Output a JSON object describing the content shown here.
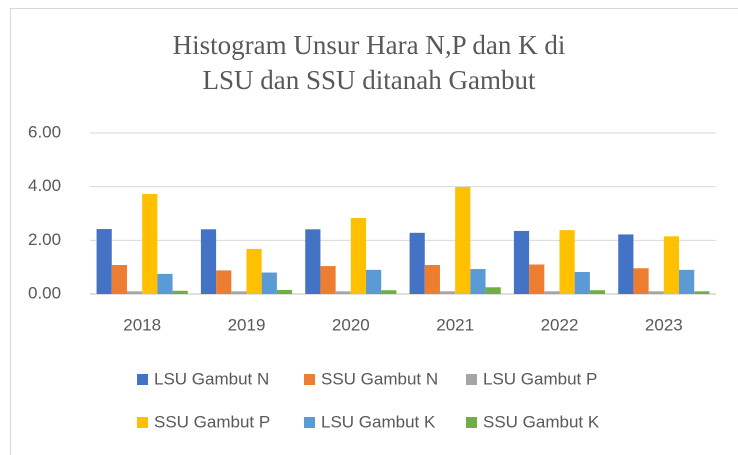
{
  "chart_data": {
    "type": "bar",
    "title": "Histogram Unsur Hara N,P dan K di LSU dan SSU ditanah Gambut",
    "categories": [
      "2018",
      "2019",
      "2020",
      "2021",
      "2022",
      "2023"
    ],
    "series": [
      {
        "name": "LSU Gambut N",
        "color": "#4472c4",
        "values": [
          2.42,
          2.41,
          2.41,
          2.28,
          2.35,
          2.22
        ]
      },
      {
        "name": "SSU Gambut N",
        "color": "#ed7d31",
        "values": [
          1.08,
          0.88,
          1.04,
          1.08,
          1.1,
          0.96
        ]
      },
      {
        "name": "LSU Gambut P",
        "color": "#a5a5a5",
        "values": [
          0.1,
          0.1,
          0.1,
          0.1,
          0.1,
          0.1
        ]
      },
      {
        "name": "SSU Gambut P",
        "color": "#ffc000",
        "values": [
          3.73,
          1.68,
          2.83,
          3.99,
          2.38,
          2.15
        ]
      },
      {
        "name": "LSU Gambut K",
        "color": "#5b9bd5",
        "values": [
          0.75,
          0.8,
          0.9,
          0.93,
          0.82,
          0.9
        ]
      },
      {
        "name": "SSU Gambut K",
        "color": "#70ad47",
        "values": [
          0.12,
          0.15,
          0.14,
          0.25,
          0.14,
          0.1
        ]
      }
    ],
    "ylim": [
      0,
      6
    ],
    "yticks": [
      {
        "value": 0,
        "label": "0.00"
      },
      {
        "value": 2,
        "label": "2.00"
      },
      {
        "value": 4,
        "label": "4.00"
      },
      {
        "value": 6,
        "label": "6.00"
      }
    ],
    "grid": true,
    "legend": "bottom"
  }
}
